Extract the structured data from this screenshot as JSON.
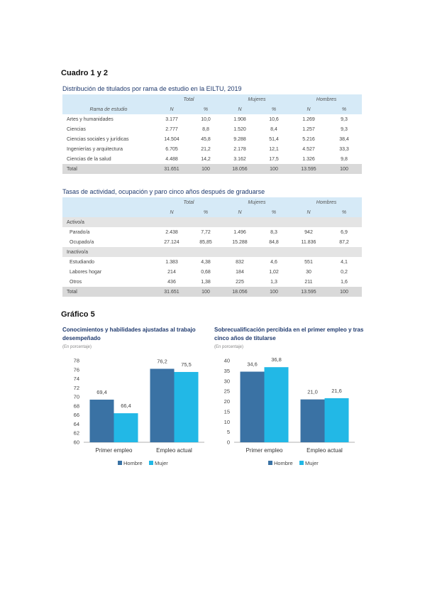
{
  "heading1": "Cuadro 1 y 2",
  "table1": {
    "title": "Distribución de titulados por rama de estudio en la EILTU, 2019",
    "groups": [
      "Total",
      "Mujeres",
      "Hombres"
    ],
    "cols": [
      "Rama de estudio",
      "N",
      "%",
      "N",
      "%",
      "N",
      "%"
    ],
    "rows": [
      [
        "Artes y humanidades",
        "3.177",
        "10,0",
        "1.908",
        "10,6",
        "1.269",
        "9,3"
      ],
      [
        "Ciencias",
        "2.777",
        "8,8",
        "1.520",
        "8,4",
        "1.257",
        "9,3"
      ],
      [
        "Ciencias sociales y jurídicas",
        "14.504",
        "45,8",
        "9.288",
        "51,4",
        "5.216",
        "38,4"
      ],
      [
        "Ingenierías y arquitectura",
        "6.705",
        "21,2",
        "2.178",
        "12,1",
        "4.527",
        "33,3"
      ],
      [
        "Ciencias de la salud",
        "4.488",
        "14,2",
        "3.162",
        "17,5",
        "1.326",
        "9,8"
      ]
    ],
    "total": [
      "Total",
      "31.651",
      "100",
      "18.056",
      "100",
      "13.595",
      "100"
    ]
  },
  "table2": {
    "title": "Tasas de actividad, ocupación y paro cinco años después de graduarse",
    "groups": [
      "Total",
      "Mujeres",
      "Hombres"
    ],
    "cols": [
      "",
      "N",
      "%",
      "N",
      "%",
      "N",
      "%"
    ],
    "section1": "Activo/a",
    "rows1": [
      [
        "Parado/a",
        "2.438",
        "7,72",
        "1.496",
        "8,3",
        "942",
        "6,9"
      ],
      [
        "Ocupado/a",
        "27.124",
        "85,85",
        "15.288",
        "84,8",
        "11.836",
        "87,2"
      ]
    ],
    "section2": "Inactivo/a",
    "rows2": [
      [
        "Estudiando",
        "1.383",
        "4,38",
        "832",
        "4,6",
        "551",
        "4,1"
      ],
      [
        "Labores hogar",
        "214",
        "0,68",
        "184",
        "1,02",
        "30",
        "0,2"
      ],
      [
        "Otros",
        "436",
        "1,38",
        "225",
        "1,3",
        "211",
        "1,6"
      ]
    ],
    "total": [
      "Total",
      "31.651",
      "100",
      "18.056",
      "100",
      "13.595",
      "100"
    ]
  },
  "heading2": "Gráfico 5",
  "colors": {
    "hombre": "#3a72a4",
    "mujer": "#22b8e6"
  },
  "chart_data": [
    {
      "type": "bar",
      "title": "Conocimientos y habilidades ajustadas al trabajo desempeñado",
      "subtitle": "(En porcentaje)",
      "categories": [
        "Primer empleo",
        "Empleo actual"
      ],
      "series": [
        {
          "name": "Hombre",
          "values": [
            69.4,
            76.2
          ],
          "labels": [
            "69,4",
            "76,2"
          ]
        },
        {
          "name": "Mujer",
          "values": [
            66.4,
            75.5
          ],
          "labels": [
            "66,4",
            "75,5"
          ]
        }
      ],
      "ylim": [
        60,
        78
      ],
      "yticks": [
        "78",
        "76",
        "74",
        "72",
        "70",
        "68",
        "66",
        "64",
        "62",
        "60"
      ],
      "legend": "bottom"
    },
    {
      "type": "bar",
      "title": "Sobrecualificación percibida en el primer empleo y tras cinco años de titularse",
      "subtitle": "(En porcentaje)",
      "categories": [
        "Primer empleo",
        "Empleo actual"
      ],
      "series": [
        {
          "name": "Hombre",
          "values": [
            34.6,
            21.0
          ],
          "labels": [
            "34,6",
            "21,0"
          ]
        },
        {
          "name": "Mujer",
          "values": [
            36.8,
            21.6
          ],
          "labels": [
            "36,8",
            "21,6"
          ]
        }
      ],
      "ylim": [
        0,
        40
      ],
      "yticks": [
        "40",
        "35",
        "30",
        "25",
        "20",
        "15",
        "10",
        "5",
        "0"
      ],
      "legend": "bottom"
    }
  ]
}
